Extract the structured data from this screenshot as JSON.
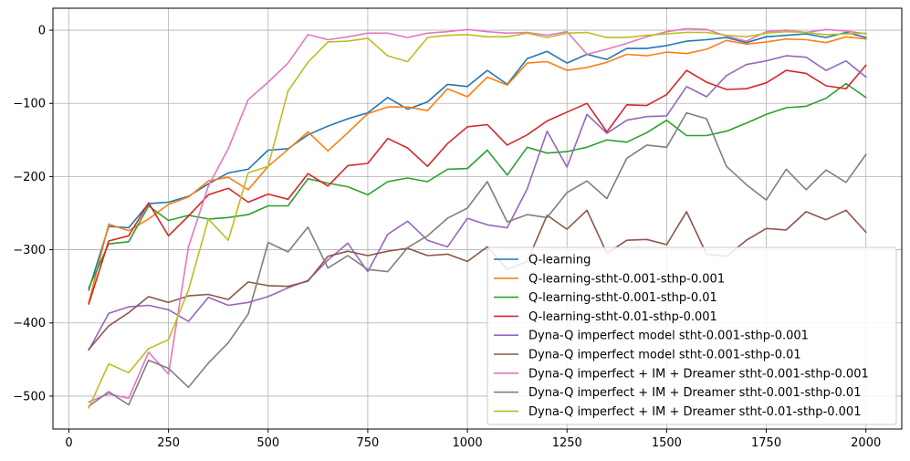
{
  "chart_data": {
    "type": "line",
    "title": "",
    "xlabel": "",
    "ylabel": "",
    "xlim": [
      -40,
      2090
    ],
    "ylim": [
      -545,
      30
    ],
    "xticks": [
      0,
      250,
      500,
      750,
      1000,
      1250,
      1500,
      1750,
      2000
    ],
    "yticks": [
      0,
      -100,
      -200,
      -300,
      -400,
      -500
    ],
    "xtick_labels": [
      "0",
      "250",
      "500",
      "750",
      "1000",
      "1250",
      "1500",
      "1750",
      "2000"
    ],
    "ytick_labels": [
      "0",
      "−100",
      "−200",
      "−300",
      "−400",
      "−500"
    ],
    "grid": true,
    "legend_position": "lower-right",
    "x": [
      50,
      100,
      150,
      200,
      250,
      300,
      350,
      400,
      450,
      500,
      550,
      600,
      650,
      700,
      750,
      800,
      850,
      900,
      950,
      1000,
      1050,
      1100,
      1150,
      1200,
      1250,
      1300,
      1350,
      1400,
      1450,
      1500,
      1550,
      1600,
      1650,
      1700,
      1750,
      1800,
      1850,
      1900,
      1950,
      2000
    ],
    "series": [
      {
        "name": "Q-learning",
        "color": "#1f77b4",
        "values": [
          -355,
          -268,
          -270,
          -237,
          -235,
          -227,
          -210,
          -195,
          -190,
          -164,
          -162,
          -143,
          -131,
          -121,
          -113,
          -92,
          -108,
          -98,
          -74,
          -77,
          -55,
          -74,
          -39,
          -29,
          -45,
          -33,
          -40,
          -25,
          -25,
          -21,
          -15,
          -13,
          -10,
          -17,
          -9,
          -7,
          -5,
          -10,
          -3,
          -10
        ]
      },
      {
        "name": "Q-learning-stht-0.001-sthp-0.001",
        "color": "#ff7f0e",
        "values": [
          -372,
          -265,
          -274,
          -258,
          -238,
          -228,
          -206,
          -201,
          -218,
          -186,
          -163,
          -139,
          -165,
          -140,
          -114,
          -105,
          -105,
          -110,
          -80,
          -91,
          -64,
          -75,
          -45,
          -43,
          -55,
          -51,
          -44,
          -33,
          -35,
          -30,
          -32,
          -26,
          -14,
          -19,
          -16,
          -12,
          -13,
          -17,
          -9,
          -12
        ]
      },
      {
        "name": "Q-learning-stht-0.001-sthp-0.01",
        "color": "#2ca02c",
        "values": [
          -352,
          -292,
          -289,
          -240,
          -260,
          -253,
          -258,
          -256,
          -252,
          -240,
          -240,
          -203,
          -209,
          -214,
          -225,
          -207,
          -202,
          -207,
          -190,
          -189,
          -164,
          -198,
          -160,
          -168,
          -166,
          -160,
          -150,
          -153,
          -140,
          -123,
          -144,
          -144,
          -138,
          -127,
          -115,
          -106,
          -104,
          -93,
          -73,
          -92
        ]
      },
      {
        "name": "Q-learning-stht-0.01-sthp-0.001",
        "color": "#d62728",
        "values": [
          -374,
          -288,
          -281,
          -236,
          -281,
          -254,
          -225,
          -216,
          -235,
          -224,
          -231,
          -196,
          -213,
          -185,
          -182,
          -148,
          -161,
          -186,
          -155,
          -132,
          -129,
          -157,
          -143,
          -124,
          -112,
          -100,
          -139,
          -102,
          -103,
          -88,
          -55,
          -71,
          -81,
          -80,
          -72,
          -55,
          -59,
          -76,
          -80,
          -48
        ]
      },
      {
        "name": "Dyna-Q imperfect model stht-0.001-sthp-0.001",
        "color": "#9467bd",
        "values": [
          -437,
          -387,
          -378,
          -376,
          -382,
          -398,
          -365,
          -376,
          -372,
          -364,
          -352,
          -342,
          -314,
          -291,
          -330,
          -279,
          -261,
          -287,
          -296,
          -257,
          -266,
          -270,
          -217,
          -138,
          -187,
          -115,
          -141,
          -123,
          -118,
          -117,
          -77,
          -91,
          -62,
          -47,
          -42,
          -35,
          -37,
          -55,
          -42,
          -64
        ]
      },
      {
        "name": "Dyna-Q imperfect model stht-0.001-sthp-0.01",
        "color": "#8c564b",
        "values": [
          -436,
          -404,
          -386,
          -364,
          -372,
          -363,
          -361,
          -368,
          -344,
          -349,
          -350,
          -343,
          -309,
          -302,
          -308,
          -302,
          -298,
          -308,
          -306,
          -316,
          -296,
          -327,
          -316,
          -253,
          -272,
          -246,
          -305,
          -287,
          -286,
          -293,
          -248,
          -306,
          -309,
          -287,
          -271,
          -273,
          -248,
          -259,
          -246,
          -276
        ]
      },
      {
        "name": "Dyna-Q imperfect + IM + Dreamer stht-0.001-sthp-0.001",
        "color": "#e377c2",
        "values": [
          -508,
          -497,
          -503,
          -440,
          -470,
          -296,
          -213,
          -162,
          -95,
          -71,
          -45,
          -6,
          -13,
          -9,
          -4,
          -4,
          -10,
          -4,
          -2,
          1,
          -2,
          -4,
          -3,
          -7,
          -2,
          -33,
          -26,
          -18,
          -9,
          -2,
          2,
          1,
          -8,
          -15,
          -2,
          0,
          -3,
          1,
          -1,
          -5
        ]
      },
      {
        "name": "Dyna-Q imperfect + IM + Dreamer stht-0.001-sthp-0.01",
        "color": "#7f7f7f",
        "values": [
          -514,
          -494,
          -512,
          -451,
          -462,
          -488,
          -455,
          -427,
          -388,
          -290,
          -303,
          -269,
          -325,
          -308,
          -327,
          -330,
          -297,
          -281,
          -257,
          -243,
          -207,
          -262,
          -252,
          -256,
          -222,
          -206,
          -230,
          -175,
          -157,
          -160,
          -113,
          -121,
          -186,
          -211,
          -232,
          -190,
          -218,
          -191,
          -208,
          -170
        ]
      },
      {
        "name": "Dyna-Q imperfect + IM + Dreamer stht-0.01-sthp-0.001",
        "color": "#bcbd22",
        "values": [
          -516,
          -456,
          -468,
          -435,
          -423,
          -355,
          -258,
          -287,
          -195,
          -186,
          -83,
          -44,
          -16,
          -15,
          -11,
          -35,
          -43,
          -10,
          -7,
          -6,
          -9,
          -9,
          -4,
          -10,
          -4,
          -3,
          -10,
          -10,
          -7,
          -5,
          -3,
          -3,
          -7,
          -9,
          -4,
          -2,
          -3,
          -6,
          -5,
          -4
        ]
      }
    ]
  }
}
